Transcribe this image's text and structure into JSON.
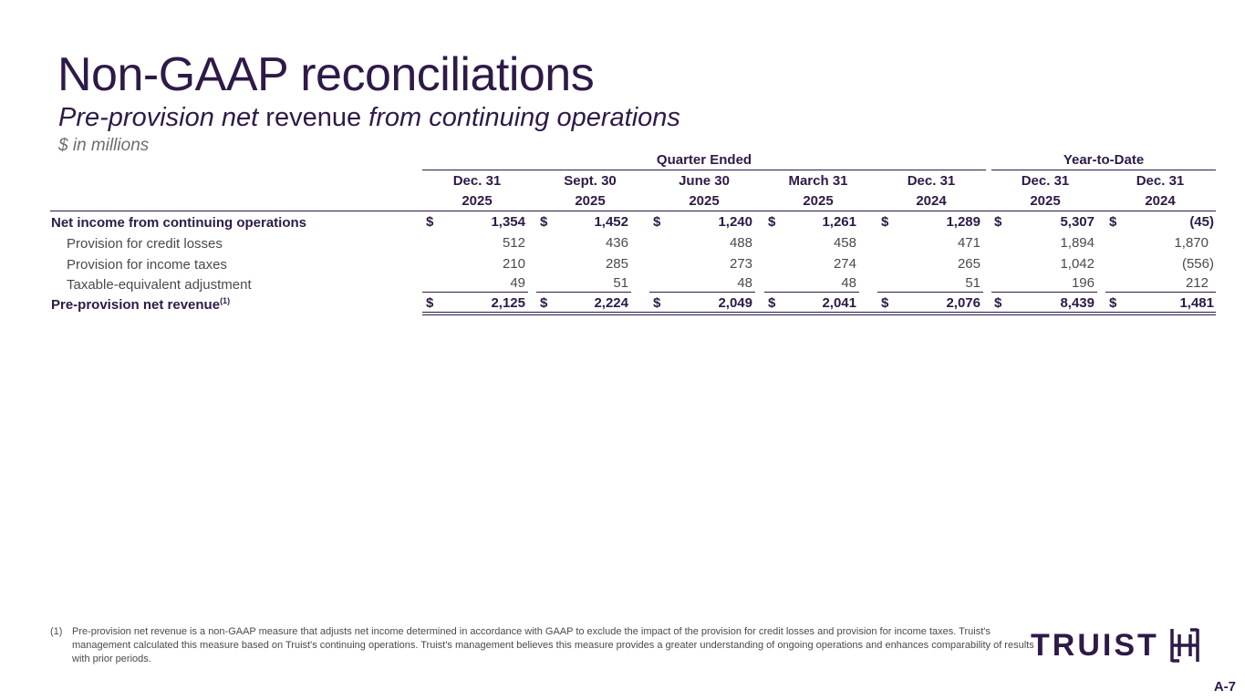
{
  "header": {
    "title": "Non-GAAP reconciliations",
    "subtitle_a": "Pre-provision net",
    "subtitle_b": "revenue",
    "subtitle_c": "from continuing operations",
    "units": "$ in millions"
  },
  "table": {
    "group_quarter": "Quarter Ended",
    "group_ytd": "Year-to-Date",
    "columns": [
      {
        "line1": "Dec. 31",
        "line2": "2025"
      },
      {
        "line1": "Sept. 30",
        "line2": "2025"
      },
      {
        "line1": "June 30",
        "line2": "2025"
      },
      {
        "line1": "March 31",
        "line2": "2025"
      },
      {
        "line1": "Dec. 31",
        "line2": "2024"
      },
      {
        "line1": "Dec. 31",
        "line2": "2025"
      },
      {
        "line1": "Dec. 31",
        "line2": "2024"
      }
    ],
    "currency_symbol": "$",
    "rows": [
      {
        "label": "Net income from continuing operations",
        "values": [
          "1,354",
          "1,452",
          "1,240",
          "1,261",
          "1,289",
          "5,307",
          "(45)"
        ]
      },
      {
        "label": "Provision for credit losses",
        "values": [
          "512",
          "436",
          "488",
          "458",
          "471",
          "1,894",
          "1,870"
        ]
      },
      {
        "label": "Provision for income taxes",
        "values": [
          "210",
          "285",
          "273",
          "274",
          "265",
          "1,042",
          "(556)"
        ]
      },
      {
        "label": "Taxable-equivalent adjustment",
        "values": [
          "49",
          "51",
          "48",
          "48",
          "51",
          "196",
          "212"
        ]
      },
      {
        "label": "Pre-provision net revenue",
        "label_sup": "(1)",
        "values": [
          "2,125",
          "2,224",
          "2,049",
          "2,041",
          "2,076",
          "8,439",
          "1,481"
        ]
      }
    ]
  },
  "footnote": {
    "mark": "(1)",
    "text": "Pre-provision net revenue is a non-GAAP measure that adjusts net income determined in accordance with GAAP to exclude the impact of the provision for credit losses and provision for income taxes. Truist's management calculated this measure based on Truist's continuing operations. Truist's management believes this measure provides a greater understanding of ongoing operations and enhances comparability of results with prior periods."
  },
  "logo": {
    "text": "TRUIST",
    "icon": "truist-monogram-icon"
  },
  "page_number": "A-7"
}
